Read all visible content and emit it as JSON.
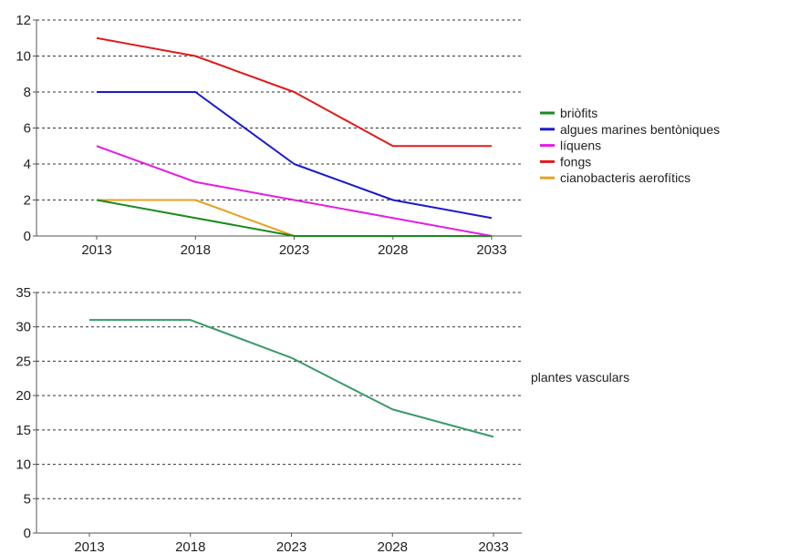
{
  "chart_data": [
    {
      "type": "line",
      "x": [
        "2013",
        "2018",
        "2023",
        "2028",
        "2033"
      ],
      "ylim": [
        0,
        12
      ],
      "yticks": [
        0,
        2,
        4,
        6,
        8,
        10,
        12
      ],
      "grid": "horizontal-dashed",
      "legend_position": "right",
      "series": [
        {
          "name": "briòfits",
          "color": "#1a8a1a",
          "values": [
            2,
            1,
            0,
            0,
            0
          ]
        },
        {
          "name": "algues marines bentòniques",
          "color": "#1a1acc",
          "values": [
            8,
            8,
            4,
            2,
            1
          ]
        },
        {
          "name": "líquens",
          "color": "#e020e0",
          "values": [
            5,
            3,
            2,
            1,
            0
          ]
        },
        {
          "name": "fongs",
          "color": "#e01a1a",
          "values": [
            11,
            10,
            8,
            5,
            5
          ]
        },
        {
          "name": "cianobacteris aerofítics",
          "color": "#e8a020",
          "values": [
            2,
            2,
            0,
            0,
            0
          ]
        }
      ]
    },
    {
      "type": "line",
      "x": [
        "2013",
        "2018",
        "2023",
        "2028",
        "2033"
      ],
      "ylim": [
        0,
        35
      ],
      "yticks": [
        0,
        5,
        10,
        15,
        20,
        25,
        30,
        35
      ],
      "grid": "horizontal-dashed",
      "legend_position": "right",
      "series": [
        {
          "name": "plantes vasculars",
          "color": "#3a9a6a",
          "values": [
            31,
            31,
            25.5,
            18,
            14
          ]
        }
      ]
    }
  ]
}
